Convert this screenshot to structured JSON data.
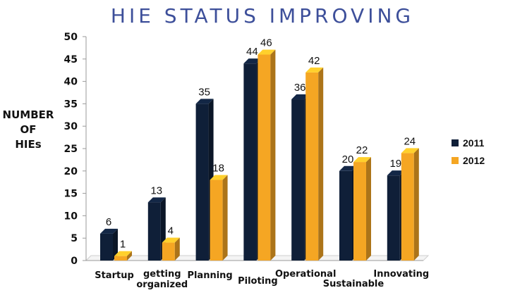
{
  "title": "HIE STATUS IMPROVING",
  "colors": {
    "series_2011": "#0f1f38",
    "series_2012": "#f5a623",
    "title": "#3d4f9a"
  },
  "chart_data": {
    "type": "bar",
    "title": "HIE STATUS IMPROVING",
    "ylabel": [
      "NUMBER",
      "OF",
      "HIEs"
    ],
    "xlabel": "",
    "categories": [
      "Startup",
      "getting organized",
      "Planning",
      "Piloting",
      "Operational",
      "Sustainable",
      "Innovating"
    ],
    "category_lines": [
      [
        "Startup"
      ],
      [
        "getting",
        "organized"
      ],
      [
        "Planning"
      ],
      [
        "Piloting"
      ],
      [
        "Operational"
      ],
      [
        "Sustainable"
      ],
      [
        "Innovating"
      ]
    ],
    "series": [
      {
        "name": "2011",
        "values": [
          6,
          13,
          35,
          44,
          36,
          20,
          19
        ]
      },
      {
        "name": "2012",
        "values": [
          1,
          4,
          18,
          46,
          42,
          22,
          24
        ]
      }
    ],
    "ylim": [
      0,
      50
    ],
    "yticks": [
      "0",
      "5",
      "10",
      "15",
      "20",
      "25",
      "30",
      "35",
      "40",
      "45",
      "50"
    ],
    "grid": false,
    "legend_position": "right",
    "data_labels": true
  }
}
